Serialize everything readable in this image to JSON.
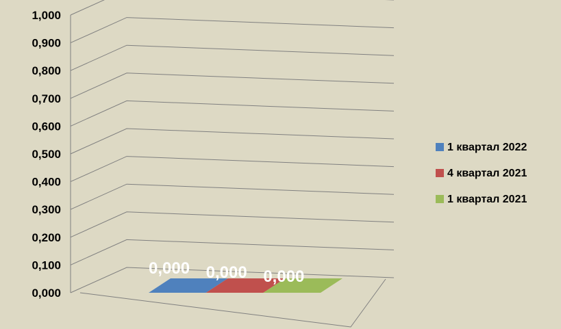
{
  "chart_data": {
    "type": "bar",
    "three_d": true,
    "categories": [
      ""
    ],
    "series": [
      {
        "name": "1 квартал 2022",
        "values": [
          0
        ],
        "color": "#4f81bd",
        "label": "0,000"
      },
      {
        "name": "4 квартал 2021",
        "values": [
          0
        ],
        "color": "#c0504d",
        "label": "0,000"
      },
      {
        "name": "1 квартал 2021",
        "values": [
          0
        ],
        "color": "#9bbb59",
        "label": "0,000"
      }
    ],
    "ylim": [
      0,
      1
    ],
    "yticks": [
      0,
      0.1,
      0.2,
      0.3,
      0.4,
      0.5,
      0.6,
      0.7,
      0.8,
      0.9,
      1.0
    ],
    "ytick_labels": [
      "0,000",
      "0,100",
      "0,200",
      "0,300",
      "0,400",
      "0,500",
      "0,600",
      "0,700",
      "0,800",
      "0,900",
      "1,000"
    ],
    "grid": true,
    "legend_position": "right",
    "background": "#ddd9c4",
    "title": "",
    "xlabel": "",
    "ylabel": ""
  }
}
